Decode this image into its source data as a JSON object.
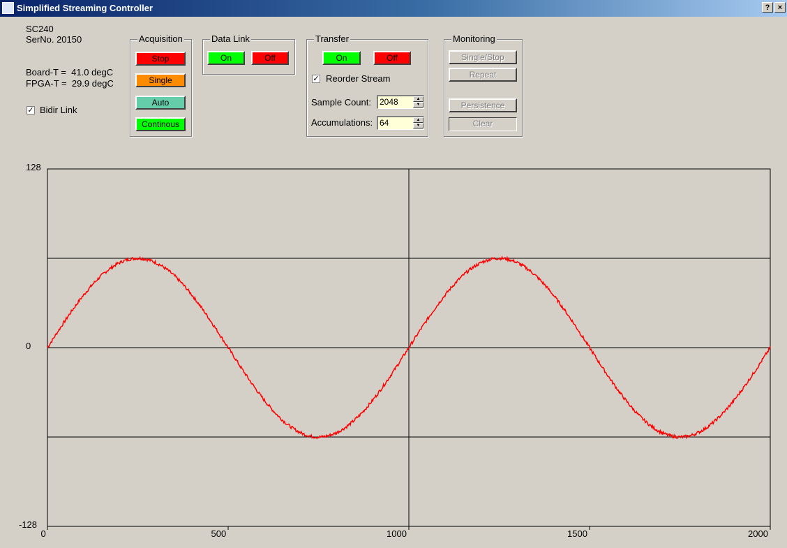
{
  "window": {
    "title": "Simplified Streaming Controller",
    "help_label": "?",
    "close_label": "×"
  },
  "device": {
    "model": "SC240",
    "serial": "SerNo. 20150",
    "board_temp": "Board-T =  41.0 degC",
    "fpga_temp": "FPGA-T =  29.9 degC",
    "bidir_label": "Bidir Link",
    "bidir_checked": true
  },
  "acquisition": {
    "label": "Acquisition",
    "stop": "Stop",
    "single": "Single",
    "auto": "Auto",
    "continuous": "Continous"
  },
  "data_link": {
    "label": "Data Link",
    "on": "On",
    "off": "Off"
  },
  "transfer": {
    "label": "Transfer",
    "on": "On",
    "off": "Off",
    "reorder_label": "Reorder Stream",
    "reorder_checked": true,
    "sample_count_label": "Sample Count:",
    "sample_count": "2048",
    "accumulations_label": "Accumulations:",
    "accumulations": "64"
  },
  "monitoring": {
    "label": "Monitoring",
    "single_stop": "Single/Stop",
    "repeat": "Repeat",
    "persistence": "Persistence",
    "clear": "Clear"
  },
  "colors": {
    "red": "#ff0000",
    "green": "#00ff00",
    "orange": "#ff8c00",
    "teal": "#66cdaa",
    "input_bg": "#ffffd8",
    "trace": "#ff0000"
  },
  "chart_data": {
    "type": "line",
    "title": "",
    "xlabel": "",
    "ylabel": "",
    "xlim": [
      0,
      2000
    ],
    "ylim": [
      -128,
      128
    ],
    "x_ticks": [
      0,
      500,
      1000,
      1500,
      2000
    ],
    "y_tick_labels": [
      "128",
      "0",
      "-128"
    ],
    "x_tick_labels": [
      "0",
      "500",
      "1000",
      "1500",
      "2000"
    ],
    "grid_y": [
      64,
      0,
      -64
    ],
    "grid_x": [
      1000
    ],
    "series": [
      {
        "amplitude": 64,
        "period": 1000,
        "x": [
          0,
          125,
          250,
          375,
          500,
          625,
          750,
          875,
          1000,
          1125,
          1250,
          1375,
          1500,
          1625,
          1750,
          1875,
          2000
        ],
        "y": [
          0,
          45,
          64,
          45,
          0,
          -45,
          -64,
          -45,
          0,
          45,
          64,
          45,
          0,
          -45,
          -64,
          -45,
          0
        ]
      }
    ]
  }
}
